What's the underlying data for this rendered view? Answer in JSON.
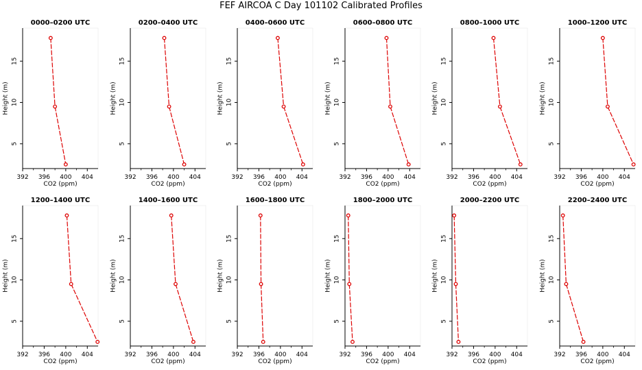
{
  "figure_title": "FEF AIRCOA C  Day 101102  Calibrated Profiles",
  "colors": {
    "line": "#dd0000",
    "point": "#dd0000",
    "axis": "#000000",
    "text": "#000000"
  },
  "chart_data": [
    {
      "type": "line",
      "title": "0000–0200 UTC",
      "xlabel": "CO2 (ppm)",
      "ylabel": "Height (m)",
      "xlim": [
        392,
        406
      ],
      "ylim": [
        2,
        19
      ],
      "xticks": [
        392,
        396,
        400,
        404
      ],
      "yticks": [
        5,
        10,
        15
      ],
      "points": [
        {
          "co2": 397.2,
          "height": 17.8
        },
        {
          "co2": 398.0,
          "height": 9.5
        },
        {
          "co2": 400.0,
          "height": 2.5
        }
      ]
    },
    {
      "type": "line",
      "title": "0200–0400 UTC",
      "xlabel": "CO2 (ppm)",
      "ylabel": "Height (m)",
      "xlim": [
        392,
        406
      ],
      "ylim": [
        2,
        19
      ],
      "xticks": [
        392,
        396,
        400,
        404
      ],
      "yticks": [
        5,
        10,
        15
      ],
      "points": [
        {
          "co2": 398.3,
          "height": 17.8
        },
        {
          "co2": 399.2,
          "height": 9.5
        },
        {
          "co2": 402.0,
          "height": 2.5
        }
      ]
    },
    {
      "type": "line",
      "title": "0400–0600 UTC",
      "xlabel": "CO2 (ppm)",
      "ylabel": "Height (m)",
      "xlim": [
        392,
        406
      ],
      "ylim": [
        2,
        19
      ],
      "xticks": [
        392,
        396,
        400,
        404
      ],
      "yticks": [
        5,
        10,
        15
      ],
      "points": [
        {
          "co2": 399.5,
          "height": 17.8
        },
        {
          "co2": 400.6,
          "height": 9.5
        },
        {
          "co2": 404.2,
          "height": 2.5
        }
      ]
    },
    {
      "type": "line",
      "title": "0600–0800 UTC",
      "xlabel": "CO2 (ppm)",
      "ylabel": "Height (m)",
      "xlim": [
        392,
        406
      ],
      "ylim": [
        2,
        19
      ],
      "xticks": [
        392,
        396,
        400,
        404
      ],
      "yticks": [
        5,
        10,
        15
      ],
      "points": [
        {
          "co2": 399.7,
          "height": 17.8
        },
        {
          "co2": 400.4,
          "height": 9.5
        },
        {
          "co2": 403.8,
          "height": 2.5
        }
      ]
    },
    {
      "type": "line",
      "title": "0800–1000 UTC",
      "xlabel": "CO2 (ppm)",
      "ylabel": "Height (m)",
      "xlim": [
        392,
        406
      ],
      "ylim": [
        2,
        19
      ],
      "xticks": [
        392,
        396,
        400,
        404
      ],
      "yticks": [
        5,
        10,
        15
      ],
      "points": [
        {
          "co2": 399.7,
          "height": 17.8
        },
        {
          "co2": 400.9,
          "height": 9.5
        },
        {
          "co2": 404.7,
          "height": 2.5
        }
      ]
    },
    {
      "type": "line",
      "title": "1000–1200 UTC",
      "xlabel": "CO2 (ppm)",
      "ylabel": "Height (m)",
      "xlim": [
        392,
        406
      ],
      "ylim": [
        2,
        19
      ],
      "xticks": [
        392,
        396,
        400,
        404
      ],
      "yticks": [
        5,
        10,
        15
      ],
      "points": [
        {
          "co2": 400.0,
          "height": 17.8
        },
        {
          "co2": 400.9,
          "height": 9.5
        },
        {
          "co2": 405.7,
          "height": 2.5
        }
      ]
    },
    {
      "type": "line",
      "title": "1200–1400 UTC",
      "xlabel": "CO2 (ppm)",
      "ylabel": "Height (m)",
      "xlim": [
        392,
        406
      ],
      "ylim": [
        2,
        19
      ],
      "xticks": [
        392,
        396,
        400,
        404
      ],
      "yticks": [
        5,
        10,
        15
      ],
      "points": [
        {
          "co2": 400.2,
          "height": 17.8
        },
        {
          "co2": 401.0,
          "height": 9.5
        },
        {
          "co2": 405.9,
          "height": 2.5
        }
      ]
    },
    {
      "type": "line",
      "title": "1400–1600 UTC",
      "xlabel": "CO2 (ppm)",
      "ylabel": "Height (m)",
      "xlim": [
        392,
        406
      ],
      "ylim": [
        2,
        19
      ],
      "xticks": [
        392,
        396,
        400,
        404
      ],
      "yticks": [
        5,
        10,
        15
      ],
      "points": [
        {
          "co2": 399.6,
          "height": 17.8
        },
        {
          "co2": 400.4,
          "height": 9.5
        },
        {
          "co2": 403.7,
          "height": 2.5
        }
      ]
    },
    {
      "type": "line",
      "title": "1600–1800 UTC",
      "xlabel": "CO2 (ppm)",
      "ylabel": "Height (m)",
      "xlim": [
        392,
        406
      ],
      "ylim": [
        2,
        19
      ],
      "xticks": [
        392,
        396,
        400,
        404
      ],
      "yticks": [
        5,
        10,
        15
      ],
      "points": [
        {
          "co2": 396.3,
          "height": 17.8
        },
        {
          "co2": 396.4,
          "height": 9.5
        },
        {
          "co2": 396.8,
          "height": 2.5
        }
      ]
    },
    {
      "type": "line",
      "title": "1800–2000 UTC",
      "xlabel": "CO2 (ppm)",
      "ylabel": "Height (m)",
      "xlim": [
        392,
        406
      ],
      "ylim": [
        2,
        19
      ],
      "xticks": [
        392,
        396,
        400,
        404
      ],
      "yticks": [
        5,
        10,
        15
      ],
      "points": [
        {
          "co2": 392.6,
          "height": 17.8
        },
        {
          "co2": 392.8,
          "height": 9.5
        },
        {
          "co2": 393.4,
          "height": 2.5
        }
      ]
    },
    {
      "type": "line",
      "title": "2000–2200 UTC",
      "xlabel": "CO2 (ppm)",
      "ylabel": "Height (m)",
      "xlim": [
        392,
        406
      ],
      "ylim": [
        2,
        19
      ],
      "xticks": [
        392,
        396,
        400,
        404
      ],
      "yticks": [
        5,
        10,
        15
      ],
      "points": [
        {
          "co2": 392.4,
          "height": 17.8
        },
        {
          "co2": 392.7,
          "height": 9.5
        },
        {
          "co2": 393.2,
          "height": 2.5
        }
      ]
    },
    {
      "type": "line",
      "title": "2200–2400 UTC",
      "xlabel": "CO2 (ppm)",
      "ylabel": "Height (m)",
      "xlim": [
        392,
        406
      ],
      "ylim": [
        2,
        19
      ],
      "xticks": [
        392,
        396,
        400,
        404
      ],
      "yticks": [
        5,
        10,
        15
      ],
      "points": [
        {
          "co2": 392.6,
          "height": 17.8
        },
        {
          "co2": 393.2,
          "height": 9.5
        },
        {
          "co2": 396.4,
          "height": 2.5
        }
      ]
    }
  ]
}
